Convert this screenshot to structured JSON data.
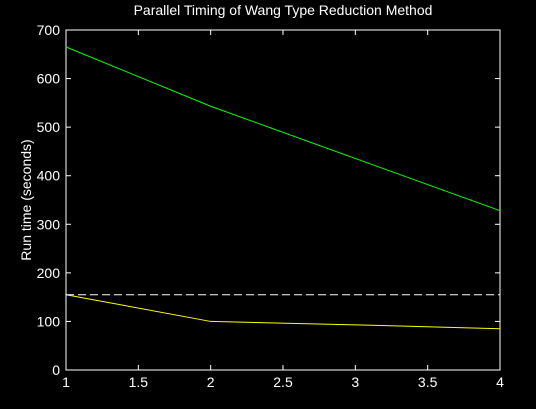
{
  "chart_data": {
    "type": "line",
    "title": "Parallel Timing of Wang Type Reduction Method",
    "xlabel": "",
    "ylabel": "Run time (seconds)",
    "xlim": [
      1,
      4
    ],
    "ylim": [
      0,
      700
    ],
    "xticks": [
      1,
      1.5,
      2,
      2.5,
      3,
      3.5,
      4
    ],
    "xtick_labels": [
      "1",
      "1.5",
      "2",
      "2.5",
      "3",
      "3.5",
      "4"
    ],
    "yticks": [
      0,
      100,
      200,
      300,
      400,
      500,
      600,
      700
    ],
    "ytick_labels": [
      "0",
      "100",
      "200",
      "300",
      "400",
      "500",
      "600",
      "700"
    ],
    "grid": false,
    "background": "#000000",
    "axis_color": "#ffffff",
    "series": [
      {
        "x": [
          1,
          2,
          4
        ],
        "y": [
          665,
          543,
          328
        ],
        "color": "#00ff00",
        "style": "solid"
      },
      {
        "x": [
          1,
          2,
          3,
          4
        ],
        "y": [
          155,
          100,
          93,
          85
        ],
        "color": "#ffff00",
        "style": "solid"
      },
      {
        "x": [
          1,
          4
        ],
        "y": [
          155,
          155
        ],
        "color": "#ffffff",
        "style": "dashed"
      }
    ]
  }
}
